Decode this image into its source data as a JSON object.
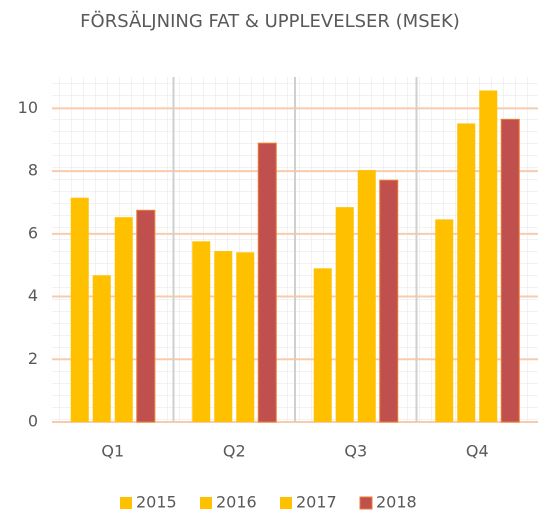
{
  "chart_data": {
    "type": "bar",
    "title": "FÖRSÄLJNING FAT & UPPLEVELSER (MSEK)",
    "categories": [
      "Q1",
      "Q2",
      "Q3",
      "Q4"
    ],
    "series": [
      {
        "name": "2015",
        "color": "#FFC000",
        "values": [
          7.15,
          5.76,
          4.9,
          6.46
        ]
      },
      {
        "name": "2016",
        "color": "#FFC000",
        "values": [
          4.68,
          5.45,
          6.85,
          9.52
        ]
      },
      {
        "name": "2017",
        "color": "#FFC000",
        "values": [
          6.53,
          5.41,
          8.03,
          10.57
        ]
      },
      {
        "name": "2018",
        "color": "#C0504D",
        "values": [
          6.75,
          8.89,
          7.71,
          9.65
        ]
      }
    ],
    "ylim": [
      0,
      11
    ],
    "yticks": [
      0,
      2,
      4,
      6,
      8,
      10
    ],
    "grid": true,
    "legend": "bottom"
  }
}
